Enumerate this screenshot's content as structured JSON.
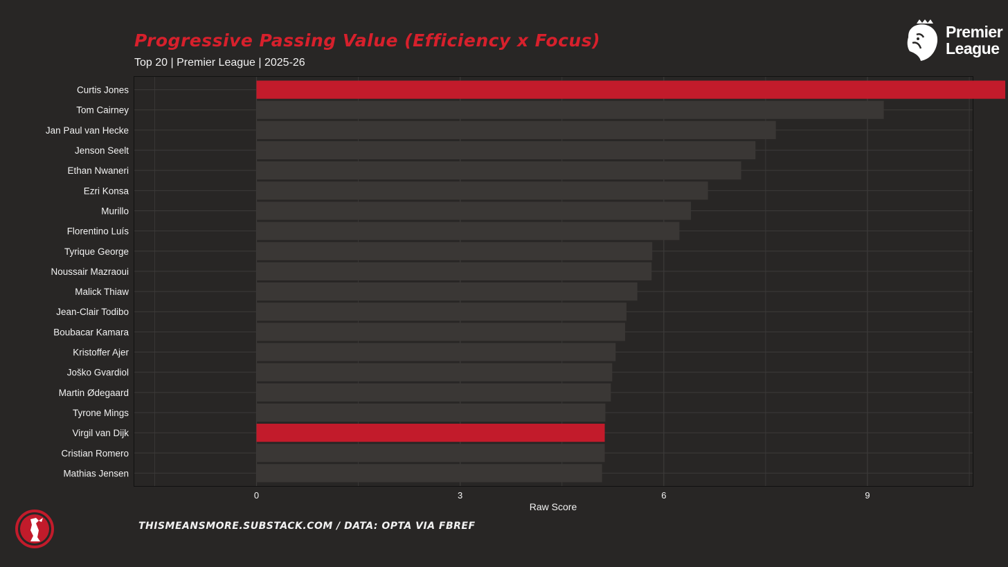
{
  "header": {
    "title": "Progressive Passing Value (Efficiency x Focus)",
    "subtitle": "Top 20 | Premier League | 2025-26",
    "logo_line1": "Premier",
    "logo_line2": "League"
  },
  "footer": {
    "credit": "THISMEANSMORE.SUBSTACK.COM / DATA: OPTA VIA FBREF"
  },
  "colors": {
    "background": "#282625",
    "bar_default": "#3a3735",
    "bar_highlight": "#c21b2b",
    "grid": "#3d3b3a",
    "title": "#d7202c"
  },
  "chart_data": {
    "type": "bar",
    "orientation": "horizontal",
    "xlabel": "Raw Score",
    "ylabel": "",
    "xlim": [
      -1.8,
      10.55
    ],
    "xticks": [
      0,
      3,
      6,
      9
    ],
    "grid": true,
    "categories": [
      "Curtis Jones",
      "Tom Cairney",
      "Jan Paul van Hecke",
      "Jenson Seelt",
      "Ethan Nwaneri",
      "Ezri Konsa",
      "Murillo",
      "Florentino Luís",
      "Tyrique George",
      "Noussair Mazraoui",
      "Malick Thiaw",
      "Jean-Clair Todibo",
      "Boubacar Kamara",
      "Kristoffer Ajer",
      "Joško Gvardiol",
      "Martin Ødegaard",
      "Tyrone Mings",
      "Virgil van Dijk",
      "Cristian Romero",
      "Mathias Jensen"
    ],
    "values": [
      11.03,
      9.24,
      7.65,
      7.35,
      7.14,
      6.65,
      6.4,
      6.23,
      5.83,
      5.82,
      5.61,
      5.45,
      5.43,
      5.29,
      5.24,
      5.22,
      5.14,
      5.13,
      5.13,
      5.09
    ],
    "highlighted": [
      "Curtis Jones",
      "Virgil van Dijk"
    ]
  }
}
